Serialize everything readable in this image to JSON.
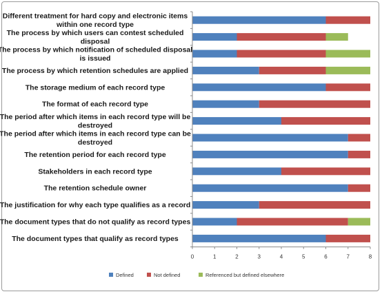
{
  "chart_data": {
    "type": "bar",
    "orientation": "horizontal",
    "stacked": true,
    "categories": [
      "Different treatment for hard copy and electronic items within one record type",
      "The process by which users can contest scheduled disposal",
      "The process by which notification of scheduled disposal is issued",
      "The process by which retention schedules are applied",
      "The storage medium of each record type",
      "The format of each record type",
      "The period after which items in each record type will be destroyed",
      "The period after which items in each record type can be destroyed",
      "The retention period for each record type",
      "Stakeholders in each record type",
      "The retention schedule owner",
      "The justification for why each type qualifies as a record",
      "The document types that do not qualify as record types",
      "The document types that qualify as record types"
    ],
    "category_lines": [
      [
        "Different treatment for hard copy and electronic items",
        "within one record type"
      ],
      [
        "The process by which users can contest scheduled",
        "disposal"
      ],
      [
        "The process by which notification of scheduled disposal",
        "is issued"
      ],
      [
        "The process by which retention schedules are applied"
      ],
      [
        "The storage medium of each record type"
      ],
      [
        "The format of each record type"
      ],
      [
        "The period after which items in each record type will be",
        "destroyed"
      ],
      [
        "The period after which items in each record type can be",
        "destroyed"
      ],
      [
        "The retention period for each record type"
      ],
      [
        "Stakeholders in each record type"
      ],
      [
        "The retention schedule owner"
      ],
      [
        "The justification for why each type qualifies as a record"
      ],
      [
        "The document types that do not qualify as record types"
      ],
      [
        "The document types that qualify as record types"
      ]
    ],
    "series": [
      {
        "name": "Defined",
        "color": "#4f81bd",
        "values": [
          6,
          2,
          2,
          3,
          6,
          3,
          4,
          7,
          7,
          4,
          7,
          3,
          2,
          6
        ]
      },
      {
        "name": "Not defined",
        "color": "#c0504d",
        "values": [
          2,
          4,
          4,
          3,
          2,
          5,
          4,
          1,
          1,
          4,
          1,
          5,
          5,
          2
        ]
      },
      {
        "name": "Referenced but defined elsewhere",
        "color": "#9bbb59",
        "values": [
          0,
          1,
          2,
          2,
          0,
          0,
          0,
          0,
          0,
          0,
          0,
          0,
          1,
          0
        ]
      }
    ],
    "xlim": [
      0,
      8
    ],
    "xticks": [
      "0",
      "1",
      "2",
      "3",
      "4",
      "5",
      "6",
      "7",
      "8"
    ],
    "grid": false,
    "legend_position": "bottom"
  }
}
